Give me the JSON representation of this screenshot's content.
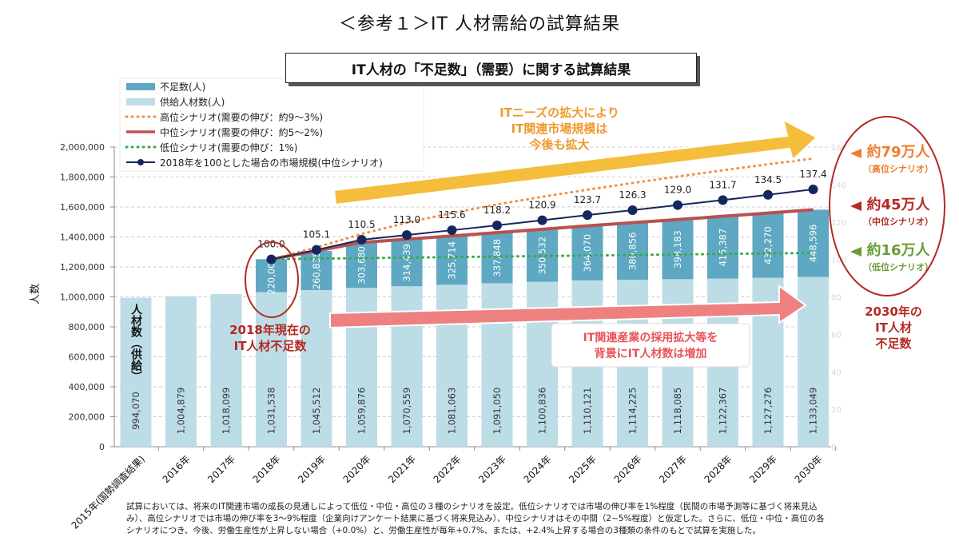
{
  "header": {
    "title": "＜参考１＞IT 人材需給の試算結果",
    "subtitle": "IT人材の「不足数」（需要）に関する試算結果"
  },
  "chart_data": {
    "type": "bar",
    "stacked": true,
    "ylabel": "人数",
    "ylim": [
      0,
      2000000
    ],
    "yticks": [
      "0",
      "200,000",
      "400,000",
      "600,000",
      "800,000",
      "1,000,000",
      "1,200,000",
      "1,400,000",
      "1,600,000",
      "1,800,000",
      "2,000,000"
    ],
    "y2lim": [
      0,
      160
    ],
    "y2ticks": [
      "0",
      "20",
      "40",
      "60",
      "80",
      "100",
      "120",
      "140",
      "160"
    ],
    "grid": true,
    "legend_position": "top-left",
    "categories": [
      "2015年(国勢調査結果)",
      "2016年",
      "2017年",
      "2018年",
      "2019年",
      "2020年",
      "2021年",
      "2022年",
      "2023年",
      "2024年",
      "2025年",
      "2026年",
      "2027年",
      "2028年",
      "2029年",
      "2030年"
    ],
    "series": [
      {
        "name": "供給人材数(人)",
        "kind": "bar",
        "color": "#bcdde6",
        "values": [
          994070,
          1004879,
          1018099,
          1031538,
          1045512,
          1059876,
          1070559,
          1081063,
          1091050,
          1100836,
          1110121,
          1114225,
          1118085,
          1122367,
          1127276,
          1133049
        ],
        "labels": [
          "994,070",
          "1,004,879",
          "1,018,099",
          "1,031,538",
          "1,045,512",
          "1,059,876",
          "1,070,559",
          "1,081,063",
          "1,091,050",
          "1,100,836",
          "1,110,121",
          "1,114,225",
          "1,118,085",
          "1,122,367",
          "1,127,276",
          "1,133,049"
        ]
      },
      {
        "name": "不足数(人)",
        "kind": "bar",
        "color": "#5fa8c3",
        "values": [
          null,
          null,
          null,
          220000,
          260835,
          303680,
          314439,
          325714,
          337848,
          350532,
          364070,
          380856,
          398183,
          415387,
          432270,
          448596
        ],
        "labels": [
          "",
          "",
          "",
          "220,000",
          "260,835",
          "303,680",
          "314,439",
          "325,714",
          "337,848",
          "350,532",
          "364,070",
          "380,856",
          "398,183",
          "415,387",
          "432,270",
          "448,596"
        ]
      },
      {
        "name": "高位シナリオ(需要の伸び：約9〜3%)",
        "kind": "dotted-line",
        "color": "#ef8f45",
        "values": [
          null,
          null,
          null,
          1251538,
          1330000,
          1420000,
          1495000,
          1560000,
          1617000,
          1668000,
          1715000,
          1760000,
          1803000,
          1845000,
          1885000,
          1923000
        ]
      },
      {
        "name": "中位シナリオ(需要の伸び：約5〜2%)",
        "kind": "line",
        "color": "#b8524f",
        "values": [
          null,
          null,
          null,
          1251538,
          1306347,
          1363556,
          1384998,
          1406777,
          1428898,
          1451368,
          1474191,
          1495081,
          1516268,
          1537754,
          1559546,
          1581645
        ]
      },
      {
        "name": "低位シナリオ(需要の伸び：1%)",
        "kind": "dotted-line",
        "color": "#3aaa4a",
        "values": [
          null,
          null,
          null,
          1251538,
          1255000,
          1258500,
          1262000,
          1265500,
          1269000,
          1272500,
          1276000,
          1279500,
          1283000,
          1286500,
          1290000,
          1293000
        ]
      },
      {
        "name": "2018年を100とした場合の市場規模(中位シナリオ)",
        "kind": "line-marker",
        "axis": "right",
        "color": "#14265e",
        "values": [
          null,
          null,
          null,
          100.0,
          105.1,
          110.5,
          113.0,
          115.6,
          118.2,
          120.9,
          123.7,
          126.3,
          129.0,
          131.7,
          134.5,
          137.4
        ],
        "labels": [
          "",
          "",
          "",
          "100.0",
          "105.1",
          "110.5",
          "113.0",
          "115.6",
          "118.2",
          "120.9",
          "123.7",
          "126.3",
          "129.0",
          "131.7",
          "134.5",
          "137.4"
        ]
      }
    ],
    "annotations": {
      "supply_bar_label": "人材数（供給）",
      "current_shortage": "2018年現在の\nIT人材不足数",
      "it_needs": "ITニーズの拡大により\nIT関連市場規模は\n今後も拡大",
      "workforce_growth": "IT関連産業の採用拡大等を\n背景にIT人材数は増加",
      "high_result": "約79万人",
      "high_result_sub": "（高位シナリオ）",
      "mid_result": "約45万人",
      "mid_result_sub": "（中位シナリオ）",
      "low_result": "約16万人",
      "low_result_sub": "（低位シナリオ）",
      "shortage_2030": "2030年の\nIT人材\n不足数"
    }
  },
  "colors": {
    "high": "#ef7d2e",
    "mid": "#b22a23",
    "low": "#6a9a35",
    "yellow_arrow": "#f4bd3b",
    "pink_arrow": "#ee8080",
    "annotation_red": "#b22a23",
    "annotation_orange": "#ef9a2e",
    "annotation_pink": "#e8545a"
  },
  "footnote": "試算においては、将来のIT関連市場の成長の見通しによって低位・中位・高位の３種のシナリオを設定。低位シナリオでは市場の伸び率を1%程度（民間の市場予測等に基づく将来見込み）、高位シナリオでは市場の伸び率を3～9%程度（企業向けアンケート結果に基づく将来見込み）、中位シナリオはその中間（2~5%程度）と仮定した。さらに、低位・中位・高位の各シナリオにつき、今後、労働生産性が上昇しない場合（+0.0%）と、労働生産性が毎年+0.7%、または、+2.4%上昇する場合の3種類の条件のもとで試算を実施した。"
}
